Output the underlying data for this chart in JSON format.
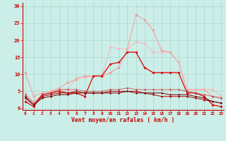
{
  "xlabel": "Vent moyen/en rafales ( km/h )",
  "bg_color": "#cceee8",
  "grid_color": "#aad8d0",
  "x_ticks": [
    0,
    1,
    2,
    3,
    4,
    5,
    6,
    7,
    8,
    9,
    10,
    11,
    12,
    13,
    14,
    15,
    16,
    17,
    18,
    19,
    20,
    21,
    22,
    23
  ],
  "y_ticks": [
    0,
    5,
    10,
    15,
    20,
    25,
    30
  ],
  "ylim": [
    -0.5,
    31
  ],
  "xlim": [
    -0.3,
    23.3
  ],
  "series": [
    {
      "color": "#ff8888",
      "alpha": 0.75,
      "lw": 0.8,
      "ms": 2.0,
      "data": [
        10.5,
        3.5,
        4.5,
        5.0,
        6.0,
        7.5,
        8.5,
        9.5,
        9.5,
        9.5,
        10.5,
        12.0,
        17.5,
        27.5,
        26.0,
        23.0,
        17.0,
        16.5,
        13.5,
        5.5,
        5.5,
        5.5,
        3.5,
        3.0
      ]
    },
    {
      "color": "#ffaaaa",
      "alpha": 0.7,
      "lw": 0.8,
      "ms": 2.0,
      "data": [
        4.5,
        2.0,
        3.5,
        5.0,
        5.5,
        5.5,
        9.0,
        9.0,
        9.5,
        9.5,
        18.0,
        17.5,
        17.5,
        19.5,
        19.0,
        16.5,
        16.5,
        16.5,
        13.5,
        5.5,
        5.5,
        5.5,
        5.5,
        3.5
      ]
    },
    {
      "color": "#dd0000",
      "alpha": 1.0,
      "lw": 0.9,
      "ms": 2.0,
      "data": [
        2.0,
        0.5,
        4.0,
        4.5,
        5.0,
        4.5,
        4.5,
        3.5,
        9.5,
        9.5,
        13.0,
        13.5,
        16.5,
        16.5,
        12.0,
        10.5,
        10.5,
        10.5,
        10.5,
        4.5,
        4.5,
        3.5,
        1.0,
        0.5
      ]
    },
    {
      "color": "#cc3333",
      "alpha": 0.7,
      "lw": 0.7,
      "ms": 1.8,
      "data": [
        4.0,
        1.5,
        4.0,
        4.5,
        5.5,
        5.5,
        5.5,
        5.0,
        5.0,
        5.0,
        5.5,
        5.5,
        6.0,
        5.5,
        5.5,
        5.5,
        5.5,
        5.5,
        5.5,
        5.0,
        4.5,
        4.0,
        3.5,
        3.0
      ]
    },
    {
      "color": "#aa0000",
      "alpha": 1.0,
      "lw": 0.7,
      "ms": 1.6,
      "data": [
        3.5,
        1.0,
        3.5,
        4.0,
        4.5,
        4.5,
        5.0,
        4.5,
        4.5,
        4.5,
        5.0,
        5.0,
        5.0,
        5.0,
        4.5,
        4.0,
        3.5,
        3.5,
        3.5,
        3.5,
        3.0,
        2.5,
        2.0,
        1.5
      ]
    },
    {
      "color": "#770000",
      "alpha": 1.0,
      "lw": 0.7,
      "ms": 1.6,
      "data": [
        3.0,
        1.0,
        3.0,
        3.5,
        4.0,
        4.0,
        4.5,
        4.5,
        4.5,
        4.5,
        4.5,
        4.5,
        5.0,
        4.5,
        4.5,
        4.5,
        4.5,
        4.0,
        4.0,
        4.0,
        3.5,
        3.0,
        2.0,
        1.5
      ]
    }
  ]
}
